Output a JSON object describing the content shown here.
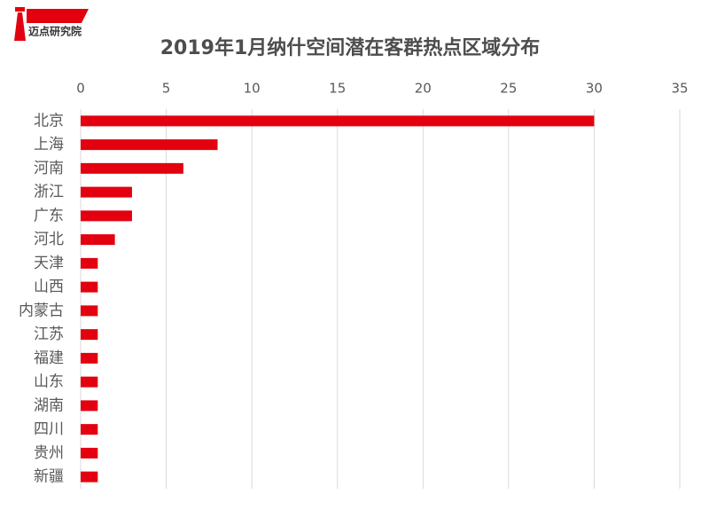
{
  "logo": {
    "text": "迈点研究院"
  },
  "chart_data": {
    "type": "bar",
    "orientation": "horizontal",
    "title": "2019年1月纳什空间潜在客群热点区域分布",
    "categories": [
      "北京",
      "上海",
      "河南",
      "浙江",
      "广东",
      "河北",
      "天津",
      "山西",
      "内蒙古",
      "江苏",
      "福建",
      "山东",
      "湖南",
      "四川",
      "贵州",
      "新疆"
    ],
    "values": [
      30,
      8,
      6,
      3,
      3,
      2,
      1,
      1,
      1,
      1,
      1,
      1,
      1,
      1,
      1,
      1
    ],
    "color": "#e3000f",
    "xlim": [
      0,
      35
    ],
    "xticks": [
      0,
      5,
      10,
      15,
      20,
      25,
      30,
      35
    ],
    "grid": true
  }
}
